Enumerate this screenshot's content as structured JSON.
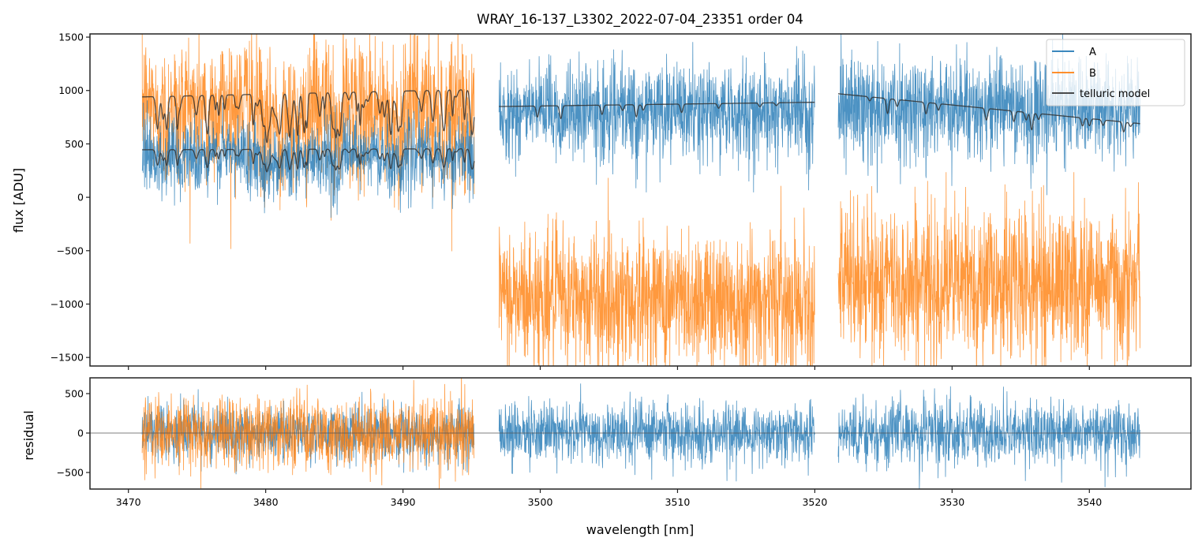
{
  "chart_data": [
    {
      "type": "line",
      "panel": "flux",
      "title": "WRAY_16-137_L3302_2022-07-04_23351  order 04",
      "xlabel": "",
      "ylabel": "flux [ADU]",
      "xlim": [
        3467.2,
        3547.4
      ],
      "ylim": [
        -1580,
        1530
      ],
      "yticks": [
        1500,
        1000,
        500,
        0,
        -500,
        -1000,
        -1500
      ],
      "ytick_labels": [
        "1500",
        "1000",
        "500",
        "0",
        "−500",
        "−1000",
        "−1500"
      ],
      "xticks": [
        3470,
        3480,
        3490,
        3500,
        3510,
        3520,
        3530,
        3540
      ],
      "legend": {
        "placement": "upper right",
        "entries": [
          "A",
          "B",
          "telluric model"
        ]
      },
      "series": [
        {
          "name": "A",
          "color": "#1f77b4",
          "segments": [
            {
              "x_range": [
                3471.0,
                3495.2
              ],
              "mean": 420,
              "noise_sd": 170
            },
            {
              "x_range": [
                3497.0,
                3520.0
              ],
              "mean": 800,
              "noise_sd": 220
            },
            {
              "x_range": [
                3521.7,
                3543.7
              ],
              "mean": 850,
              "noise_sd": 230
            }
          ]
        },
        {
          "name": "B",
          "color": "#ff7f0e",
          "segments": [
            {
              "x_range": [
                3471.0,
                3495.2
              ],
              "mean": 900,
              "noise_sd": 330
            },
            {
              "x_range": [
                3497.0,
                3520.0
              ],
              "mean": -950,
              "noise_sd": 330
            },
            {
              "x_range": [
                3521.7,
                3543.7
              ],
              "mean": -800,
              "noise_sd": 360
            }
          ]
        },
        {
          "name": "telluric model",
          "color": "#333333",
          "segments": [
            {
              "x_range": [
                3471.0,
                3495.2
              ],
              "continuum": [
                940,
                1010
              ],
              "scale_of": "B"
            },
            {
              "x_range": [
                3471.0,
                3495.2
              ],
              "continuum": [
                445,
                455
              ],
              "scale_of": "A"
            },
            {
              "x_range": [
                3497.0,
                3520.0
              ],
              "continuum": [
                850,
                890
              ],
              "scale_of": "A"
            },
            {
              "x_range": [
                3521.7,
                3543.7
              ],
              "continuum": [
                970,
                690
              ],
              "scale_of": "A"
            }
          ]
        }
      ]
    },
    {
      "type": "line",
      "panel": "residual",
      "xlabel": "wavelength [nm]",
      "ylabel": "residual",
      "xlim": [
        3467.2,
        3547.4
      ],
      "ylim": [
        -710,
        700
      ],
      "yticks": [
        500,
        0,
        -500
      ],
      "ytick_labels": [
        "500",
        "0",
        "−500"
      ],
      "xticks": [
        3470,
        3480,
        3490,
        3500,
        3510,
        3520,
        3530,
        3540
      ],
      "xtick_labels": [
        "3470",
        "3480",
        "3490",
        "3500",
        "3510",
        "3520",
        "3530",
        "3540"
      ],
      "hline": 0,
      "series": [
        {
          "name": "A",
          "color": "#1f77b4",
          "segments": [
            {
              "x_range": [
                3471.0,
                3495.2
              ],
              "noise_sd": 170
            },
            {
              "x_range": [
                3497.0,
                3520.0
              ],
              "noise_sd": 190
            },
            {
              "x_range": [
                3521.7,
                3543.7
              ],
              "noise_sd": 200
            }
          ]
        },
        {
          "name": "B",
          "color": "#ff7f0e",
          "segments": [
            {
              "x_range": [
                3471.0,
                3495.2
              ],
              "noise_sd": 240
            }
          ]
        }
      ]
    }
  ]
}
